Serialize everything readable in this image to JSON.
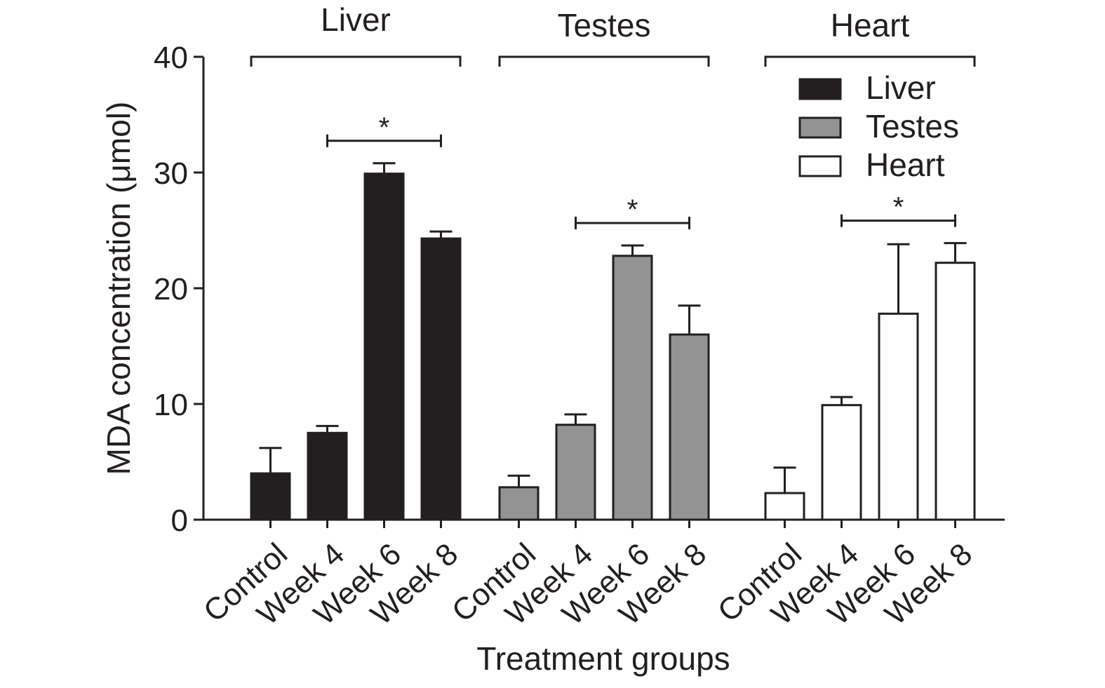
{
  "chart_data": {
    "type": "bar",
    "xlabel": "Treatment groups",
    "ylabel": "MDA concentration (μmol)",
    "ylim": [
      0,
      40
    ],
    "yticks": [
      0,
      10,
      20,
      30,
      40
    ],
    "grid": false,
    "legend_placement": "top-right",
    "categories": [
      "Control",
      "Week 4",
      "Week 6",
      "Week 8"
    ],
    "groups": [
      {
        "name": "Liver",
        "color": "#231f20",
        "values": [
          4.0,
          7.5,
          29.9,
          24.3
        ],
        "errors": [
          2.2,
          0.6,
          0.9,
          0.6
        ],
        "significance": {
          "from": "Week 4",
          "to": "Week 8",
          "label": "*"
        }
      },
      {
        "name": "Testes",
        "color": "#939393",
        "values": [
          2.8,
          8.2,
          22.8,
          16.0
        ],
        "errors": [
          1.0,
          0.9,
          0.9,
          2.5
        ],
        "significance": {
          "from": "Week 4",
          "to": "Week 8",
          "label": "*"
        }
      },
      {
        "name": "Heart",
        "color": "#ffffff",
        "values": [
          2.3,
          9.9,
          17.8,
          22.2
        ],
        "errors": [
          2.2,
          0.7,
          6.0,
          1.7
        ],
        "significance": {
          "from": "Week 4",
          "to": "Week 8",
          "label": "*"
        }
      }
    ],
    "legend": [
      "Liver",
      "Testes",
      "Heart"
    ]
  }
}
